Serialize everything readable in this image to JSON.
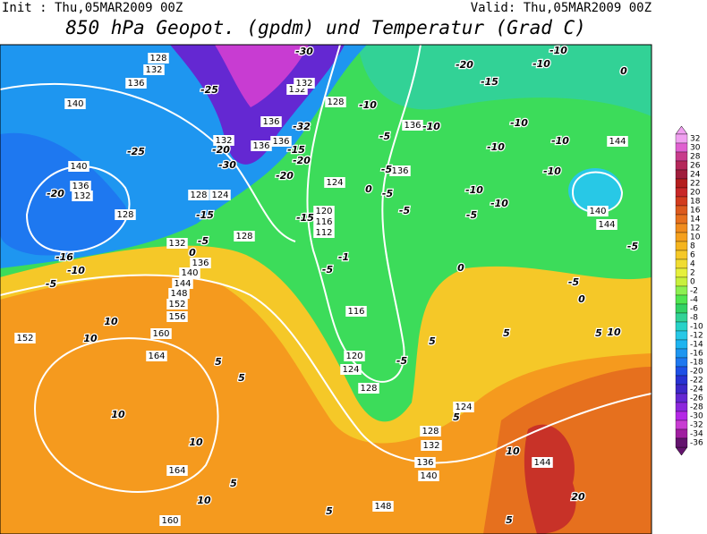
{
  "header": {
    "init": "Init : Thu,05MAR2009 00Z",
    "valid": "Valid: Thu,05MAR2009 00Z",
    "title": "850 hPa Geopot. (gpdm) und Temperatur (Grad C)"
  },
  "legend": {
    "labels": [
      "32",
      "30",
      "28",
      "26",
      "24",
      "22",
      "20",
      "18",
      "16",
      "14",
      "12",
      "10",
      "8",
      "6",
      "4",
      "2",
      "0",
      "-2",
      "-4",
      "-6",
      "-8",
      "-10",
      "-12",
      "-14",
      "-16",
      "-18",
      "-20",
      "-22",
      "-24",
      "-26",
      "-28",
      "-30",
      "-32",
      "-34",
      "-36"
    ],
    "colors": [
      "#f0a0f0",
      "#e060d0",
      "#c83c8c",
      "#b4285a",
      "#a01e3c",
      "#b41e1e",
      "#c82828",
      "#d23c1e",
      "#dc5a1e",
      "#e6701e",
      "#f08c1e",
      "#f5a01e",
      "#f5b41e",
      "#f5c828",
      "#f0dc32",
      "#e6f03c",
      "#c8f03c",
      "#8cf050",
      "#50e650",
      "#32d264",
      "#32d296",
      "#28d2c8",
      "#28c8e6",
      "#1eb4f0",
      "#1e96f0",
      "#1e78f0",
      "#1e50e6",
      "#2832d2",
      "#3c28c8",
      "#6428d2",
      "#8c28dc",
      "#b428e6",
      "#c83cd2",
      "#a01ea0",
      "#64146e"
    ]
  },
  "map": {
    "geopotential_labels": [
      "128",
      "132",
      "136",
      "140",
      "140",
      "136",
      "132",
      "128",
      "132",
      "128",
      "136",
      "140",
      "144",
      "148",
      "152",
      "156",
      "160",
      "164",
      "152",
      "164",
      "160",
      "124",
      "128",
      "132",
      "136",
      "136",
      "136",
      "132",
      "132",
      "128",
      "136",
      "136",
      "124",
      "120",
      "116",
      "112",
      "116",
      "120",
      "124",
      "128",
      "124",
      "128",
      "132",
      "136",
      "140",
      "144",
      "148",
      "140",
      "144",
      "144"
    ],
    "temperature_labels": [
      "-30",
      "-20",
      "-15",
      "-10",
      "-10",
      "0",
      "-25",
      "-10",
      "-10",
      "-10",
      "-5",
      "-32",
      "-20",
      "-30",
      "-20",
      "-25",
      "-20",
      "-15",
      "-10",
      "-10",
      "-10",
      "-5",
      "-20",
      "-15",
      "-5",
      "-15",
      "-10",
      "-10",
      "-5",
      "-5",
      "0",
      "-5",
      "-16",
      "-10",
      "-5",
      "0",
      "-1",
      "-5",
      "-5",
      "-5",
      "10",
      "10",
      "5",
      "5",
      "10",
      "10",
      "5",
      "10",
      "5",
      "5",
      "0",
      "5",
      "-5",
      "0",
      "5",
      "10",
      "10",
      "20",
      "5",
      "5"
    ]
  }
}
